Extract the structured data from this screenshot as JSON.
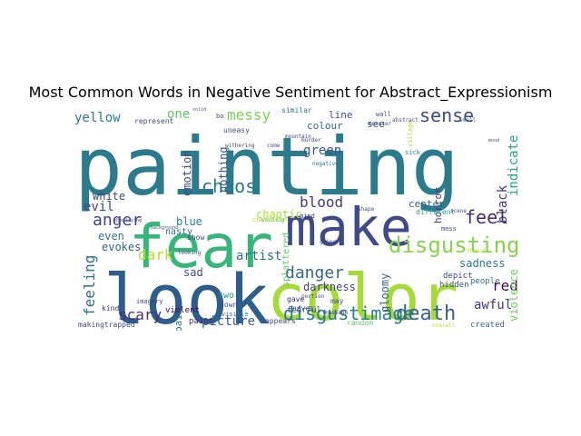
{
  "chart_data": {
    "type": "wordcloud",
    "title": "Most Common Words in Negative Sentiment for Abstract_Expressionism",
    "background": "#ffffff",
    "colormap": "viridis",
    "words": [
      {
        "text": "painting",
        "weight": 100,
        "color": "#2c7b8c"
      },
      {
        "text": "fear",
        "weight": 85,
        "color": "#35b779"
      },
      {
        "text": "look",
        "weight": 78,
        "color": "#2d5d8b"
      },
      {
        "text": "color",
        "weight": 74,
        "color": "#a5db36"
      },
      {
        "text": "make",
        "weight": 60,
        "color": "#3e4a89"
      },
      {
        "text": "disgusting",
        "weight": 34,
        "color": "#86d549"
      },
      {
        "text": "death",
        "weight": 26,
        "color": "#355f8d"
      },
      {
        "text": "disgustimage",
        "weight": 26,
        "color": "#297b8e"
      },
      {
        "text": "danger",
        "weight": 24,
        "color": "#31688e"
      },
      {
        "text": "chaos",
        "weight": 24,
        "color": "#2a788e"
      },
      {
        "text": "sense",
        "weight": 24,
        "color": "#3e4989"
      },
      {
        "text": "feel",
        "weight": 24,
        "color": "#482878"
      },
      {
        "text": "anger",
        "weight": 22,
        "color": "#3f4788"
      },
      {
        "text": "feeling",
        "weight": 22,
        "color": "#2e6e8e"
      },
      {
        "text": "messy",
        "weight": 20,
        "color": "#7ad151"
      },
      {
        "text": "blood",
        "weight": 20,
        "color": "#443983"
      },
      {
        "text": "scary",
        "weight": 20,
        "color": "#472f7d"
      },
      {
        "text": "dark",
        "weight": 20,
        "color": "#b5de2b"
      },
      {
        "text": "picture",
        "weight": 18,
        "color": "#355f8d"
      },
      {
        "text": "black",
        "weight": 18,
        "color": "#46337e"
      },
      {
        "text": "indicate",
        "weight": 18,
        "color": "#22a884"
      },
      {
        "text": "yellow",
        "weight": 16,
        "color": "#2a788e"
      },
      {
        "text": "green",
        "weight": 16,
        "color": "#3b528b"
      },
      {
        "text": "evil",
        "weight": 16,
        "color": "#414487"
      },
      {
        "text": "one",
        "weight": 16,
        "color": "#5ec962"
      },
      {
        "text": "artist",
        "weight": 16,
        "color": "#2c728e"
      },
      {
        "text": "red",
        "weight": 16,
        "color": "#440154"
      },
      {
        "text": "awful",
        "weight": 16,
        "color": "#463480"
      },
      {
        "text": "sadness",
        "weight": 14,
        "color": "#2a768e"
      },
      {
        "text": "gloomy",
        "weight": 14,
        "color": "#33638d"
      },
      {
        "text": "violence",
        "weight": 14,
        "color": "#6ccd5a"
      },
      {
        "text": "blue",
        "weight": 14,
        "color": "#26828e"
      },
      {
        "text": "white",
        "weight": 13,
        "color": "#414487"
      },
      {
        "text": "darkness",
        "weight": 13,
        "color": "#424086"
      },
      {
        "text": "chaotic",
        "weight": 13,
        "color": "#addc30"
      },
      {
        "text": "evokes",
        "weight": 12,
        "color": "#32648e"
      },
      {
        "text": "sad",
        "weight": 12,
        "color": "#3e4a89"
      },
      {
        "text": "even",
        "weight": 12,
        "color": "#2a788e"
      },
      {
        "text": "emotion",
        "weight": 12,
        "color": "#404688"
      },
      {
        "text": "nothing",
        "weight": 12,
        "color": "#3a548c"
      },
      {
        "text": "horror",
        "weight": 12,
        "color": "#453882"
      },
      {
        "text": "center",
        "weight": 12,
        "color": "#355f8d"
      },
      {
        "text": "see",
        "weight": 12,
        "color": "#3b528b"
      },
      {
        "text": "line",
        "weight": 11,
        "color": "#3e4c8a"
      },
      {
        "text": "colour",
        "weight": 11,
        "color": "#31688e"
      },
      {
        "text": "pain",
        "weight": 11,
        "color": "#2f6c8e"
      },
      {
        "text": "splattered",
        "weight": 10,
        "color": "#5ec962"
      },
      {
        "text": "nasty",
        "weight": 10,
        "color": "#2d708e"
      },
      {
        "text": "two",
        "weight": 9,
        "color": "#1f958b"
      },
      {
        "text": "violent",
        "weight": 9,
        "color": "#440154"
      },
      {
        "text": "hidden",
        "weight": 9,
        "color": "#3b528b"
      },
      {
        "text": "people",
        "weight": 9,
        "color": "#2c738e"
      },
      {
        "text": "created",
        "weight": 9,
        "color": "#31688e"
      },
      {
        "text": "depict",
        "weight": 9,
        "color": "#3e4989"
      },
      {
        "text": "fearful",
        "weight": 9,
        "color": "#3e4989"
      },
      {
        "text": "paint",
        "weight": 9,
        "color": "#482878"
      },
      {
        "text": "kind",
        "weight": 8,
        "color": "#46337e"
      },
      {
        "text": "makingtrapped",
        "weight": 8,
        "color": "#3f4788"
      },
      {
        "text": "appears",
        "weight": 8,
        "color": "#414487"
      },
      {
        "text": "random",
        "weight": 8,
        "color": "#5ec962"
      },
      {
        "text": "gave",
        "weight": 8,
        "color": "#472f7d"
      },
      {
        "text": "never",
        "weight": 8,
        "color": "#3b528b"
      },
      {
        "text": "may",
        "weight": 8,
        "color": "#3e4c8a"
      },
      {
        "text": "different",
        "weight": 8,
        "color": "#20a486"
      },
      {
        "text": "town",
        "weight": 8,
        "color": "#3b528b"
      },
      {
        "text": "represent",
        "weight": 8,
        "color": "#3f4788"
      },
      {
        "text": "show",
        "weight": 8,
        "color": "#424086"
      },
      {
        "text": "confusion",
        "weight": 7,
        "color": "#b5de2b"
      },
      {
        "text": "uneasy",
        "weight": 8,
        "color": "#3b528b"
      },
      {
        "text": "similar",
        "weight": 8,
        "color": "#2c728e"
      },
      {
        "text": "mess",
        "weight": 7,
        "color": "#3e4a89"
      },
      {
        "text": "imagery",
        "weight": 7,
        "color": "#3f4788"
      },
      {
        "text": "visible",
        "weight": 7,
        "color": "#2c728e"
      },
      {
        "text": "mind",
        "weight": 7,
        "color": "#424086"
      },
      {
        "text": "village",
        "weight": 7,
        "color": "#addc30"
      },
      {
        "text": "sick",
        "weight": 7,
        "color": "#26828e"
      },
      {
        "text": "scene",
        "weight": 6,
        "color": "#3e4989"
      },
      {
        "text": "threat",
        "weight": 6,
        "color": "#b5de2b"
      },
      {
        "text": "wall",
        "weight": 7,
        "color": "#3e4c8a"
      },
      {
        "text": "negative",
        "weight": 6,
        "color": "#2c728e"
      },
      {
        "text": "murder",
        "weight": 6,
        "color": "#3e4989"
      },
      {
        "text": "monster",
        "weight": 6,
        "color": "#3e4c8a"
      },
      {
        "text": "shape",
        "weight": 6,
        "color": "#3e4c8a"
      },
      {
        "text": "small",
        "weight": 6,
        "color": "#31688e"
      },
      {
        "text": "abstract",
        "weight": 6,
        "color": "#3b528b"
      },
      {
        "text": "withering",
        "weight": 6,
        "color": "#3e4989"
      },
      {
        "text": "mountain",
        "weight": 6,
        "color": "#3e4c8a"
      },
      {
        "text": "portion",
        "weight": 6,
        "color": "#3e4a89"
      },
      {
        "text": "going",
        "weight": 6,
        "color": "#3e4a89"
      },
      {
        "text": "warning",
        "weight": 6,
        "color": "#5ec962"
      },
      {
        "text": "overall",
        "weight": 6,
        "color": "#b5de2b"
      },
      {
        "text": "massage",
        "weight": 6,
        "color": "#3e4989"
      },
      {
        "text": "looking",
        "weight": 6,
        "color": "#3e4a89"
      },
      {
        "text": "background",
        "weight": 5,
        "color": "#3e4c8a"
      },
      {
        "text": "displaying",
        "weight": 5,
        "color": "#3e4c8a"
      },
      {
        "text": "bo",
        "weight": 7,
        "color": "#3e4c8a"
      },
      {
        "text": "come",
        "weight": 6,
        "color": "#3e4c8a"
      },
      {
        "text": "mood",
        "weight": 5,
        "color": "#3e4c8a"
      },
      {
        "text": "solid",
        "weight": 5,
        "color": "#3e4c8a"
      }
    ]
  }
}
